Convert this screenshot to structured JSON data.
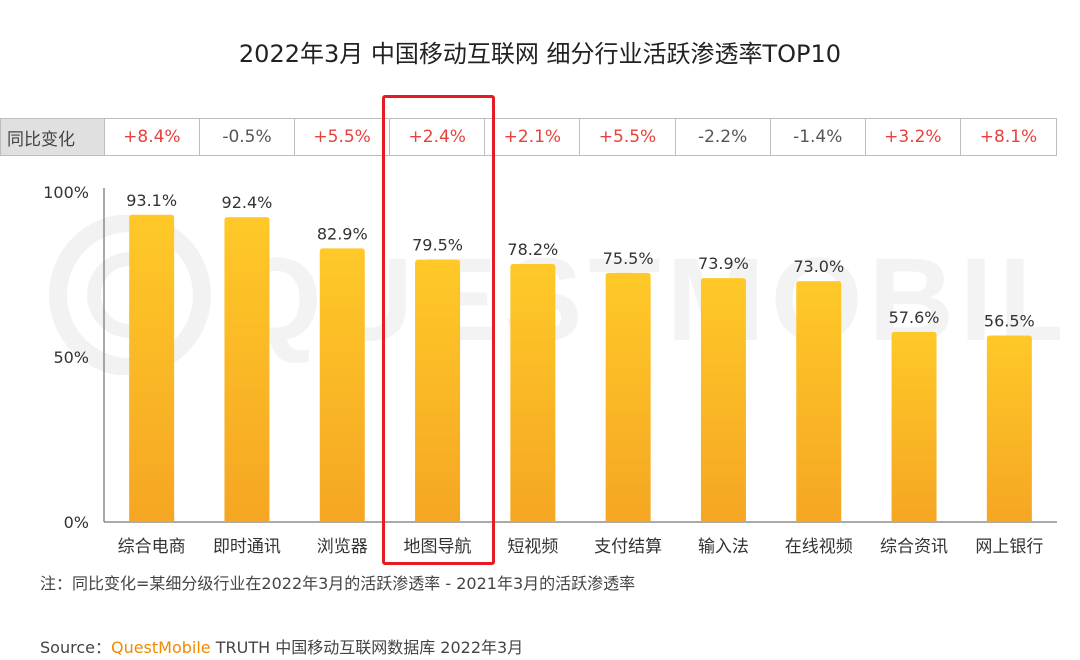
{
  "chart_data": {
    "type": "bar",
    "title": "2022年3月 中国移动互联网 细分行业活跃渗透率TOP10",
    "categories": [
      "综合电商",
      "即时通讯",
      "浏览器",
      "地图导航",
      "短视频",
      "支付结算",
      "输入法",
      "在线视频",
      "综合资讯",
      "网上银行"
    ],
    "values": [
      93.1,
      92.4,
      82.9,
      79.5,
      78.2,
      75.5,
      73.9,
      73.0,
      57.6,
      56.5
    ],
    "value_labels": [
      "93.1%",
      "92.4%",
      "82.9%",
      "79.5%",
      "78.2%",
      "75.5%",
      "73.9%",
      "73.0%",
      "57.6%",
      "56.5%"
    ],
    "y_ticks": [
      "0%",
      "50%",
      "100%"
    ],
    "ylim": [
      0,
      100
    ],
    "bar_color_top": "#ffc928",
    "bar_color_bottom": "#f5a623",
    "highlighted_category": "地图导航",
    "highlight_color": "#e51c23",
    "yoy": {
      "label": "同比变化",
      "values": [
        "+8.4%",
        "-0.5%",
        "+5.5%",
        "+2.4%",
        "+2.1%",
        "+5.5%",
        "-2.2%",
        "-1.4%",
        "+3.2%",
        "+8.1%"
      ],
      "positive_color": "#e8413c",
      "negative_color": "#555555"
    },
    "grid": false,
    "legend": "none"
  },
  "watermark_text": "QUESTMOBILE",
  "note": "注：同比变化=某细分级行业在2022年3月的活跃渗透率 - 2021年3月的活跃渗透率",
  "source": {
    "label": "Source：",
    "brand": "QuestMobile",
    "rest": " TRUTH 中国移动互联网数据库 2022年3月"
  }
}
